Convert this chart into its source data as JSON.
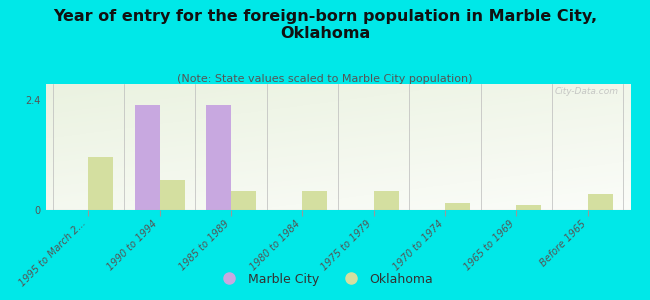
{
  "title": "Year of entry for the foreign-born population in Marble City,\nOklahoma",
  "subtitle": "(Note: State values scaled to Marble City population)",
  "categories": [
    "1995 to March 2...",
    "1990 to 1994",
    "1985 to 1989",
    "1980 to 1984",
    "1975 to 1979",
    "1970 to 1974",
    "1965 to 1969",
    "Before 1965"
  ],
  "marble_city_values": [
    0.0,
    2.3,
    2.3,
    0.0,
    0.0,
    0.0,
    0.0,
    0.0
  ],
  "oklahoma_values": [
    1.15,
    0.65,
    0.42,
    0.42,
    0.42,
    0.15,
    0.1,
    0.35
  ],
  "marble_city_color": "#c8a8e0",
  "oklahoma_color": "#d4dfa0",
  "background_color": "#00e8e8",
  "ylim": [
    0,
    2.75
  ],
  "yticks": [
    0,
    2.4
  ],
  "bar_width": 0.35,
  "watermark": "City-Data.com",
  "title_fontsize": 11.5,
  "subtitle_fontsize": 8,
  "tick_fontsize": 7,
  "legend_fontsize": 9
}
